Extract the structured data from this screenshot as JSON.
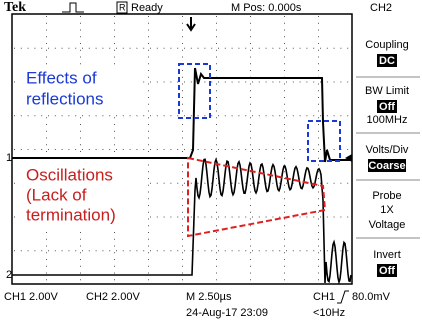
{
  "header": {
    "brand": "Tek",
    "status_icon": "R",
    "status": "Ready",
    "position": "M Pos: 0.000s",
    "channel": "CH2"
  },
  "menu": {
    "coupling": {
      "label": "Coupling",
      "value": "DC"
    },
    "bw_limit": {
      "label": "BW Limit",
      "value": "Off",
      "extra": "100MHz"
    },
    "volts_div": {
      "label": "Volts/Div",
      "value": "Coarse"
    },
    "probe": {
      "label": "Probe",
      "lines": [
        "1X",
        "Voltage"
      ]
    },
    "invert": {
      "label": "Invert",
      "value": "Off"
    }
  },
  "markers": [
    "1",
    "2"
  ],
  "footer": {
    "ch1": "CH1 2.00V",
    "ch2": "CH2 2.00V",
    "timebase": "M 2.50µs",
    "trigger_source": "CH1",
    "trigger_level": "80.0mV",
    "date": "24-Aug-17 23:09",
    "frequency": "<10Hz"
  },
  "annotations": {
    "reflections": [
      "Effects of",
      "reflections"
    ],
    "oscillations": [
      "Oscillations",
      "(Lack of",
      "termination)"
    ]
  }
}
